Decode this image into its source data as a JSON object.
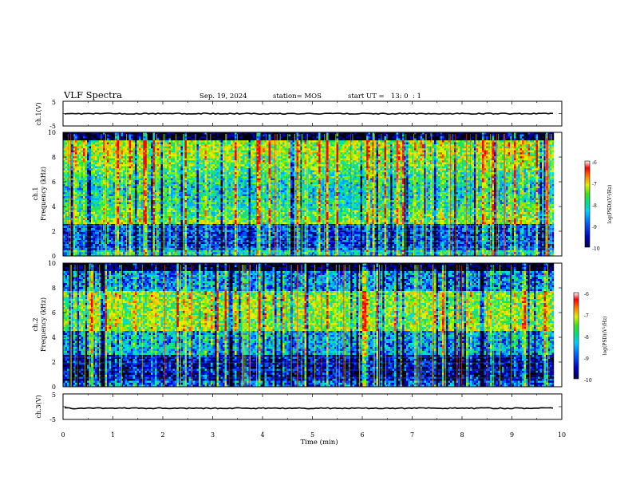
{
  "header": {
    "title": "VLF Spectra",
    "date": "Sep. 19, 2024",
    "station": "station= MOS",
    "start": "start UT =   13: 0  : 1"
  },
  "chart_data": {
    "type": "heatmap",
    "x_axis": {
      "label": "Time (min)",
      "range": [
        0,
        10
      ],
      "ticks": [
        "0",
        "1",
        "2",
        "3",
        "4",
        "5",
        "6",
        "7",
        "8",
        "9",
        "10"
      ]
    },
    "panels": [
      {
        "id": "ch1-waveform",
        "type": "line",
        "ylabel": "ch.1(V)",
        "ylim": [
          -5,
          5
        ],
        "ytick_labels": [
          "5",
          "-5"
        ]
      },
      {
        "id": "ch1-spectrogram",
        "type": "heatmap",
        "ylabel_line1": "ch.1",
        "ylabel_line2": "Frequency (kHz)",
        "ylim": [
          0,
          10
        ],
        "ytick_labels": [
          "0",
          "2",
          "4",
          "6",
          "8",
          "10"
        ],
        "colorbar": {
          "label": "log(PSD)(V²/Hz)",
          "range": [
            -10,
            -6
          ],
          "tick_labels": [
            "-6",
            "-7",
            "-8",
            "-9",
            "-10"
          ]
        }
      },
      {
        "id": "ch2-spectrogram",
        "type": "heatmap",
        "ylabel_line1": "ch.2",
        "ylabel_line2": "Frequency (kHz)",
        "ylim": [
          0,
          10
        ],
        "ytick_labels": [
          "0",
          "2",
          "4",
          "6",
          "8",
          "10"
        ],
        "colorbar": {
          "label": "log(PSD)(V²/Hz)",
          "range": [
            -10,
            -6
          ],
          "tick_labels": [
            "-6",
            "-7",
            "-8",
            "-9",
            "-10"
          ]
        }
      },
      {
        "id": "ch3-waveform",
        "type": "line",
        "ylabel": "ch.3(V)",
        "ylim": [
          -5,
          5
        ],
        "ytick_labels": [
          "5",
          "-5"
        ]
      }
    ],
    "data_end_min": 9.83,
    "grid": false,
    "colormap": [
      "#000000",
      "#0000aa",
      "#0044ff",
      "#00aaff",
      "#00e0c0",
      "#30e030",
      "#c8f000",
      "#ffe000",
      "#ff6000",
      "#ff0000",
      "#ffffff"
    ]
  }
}
